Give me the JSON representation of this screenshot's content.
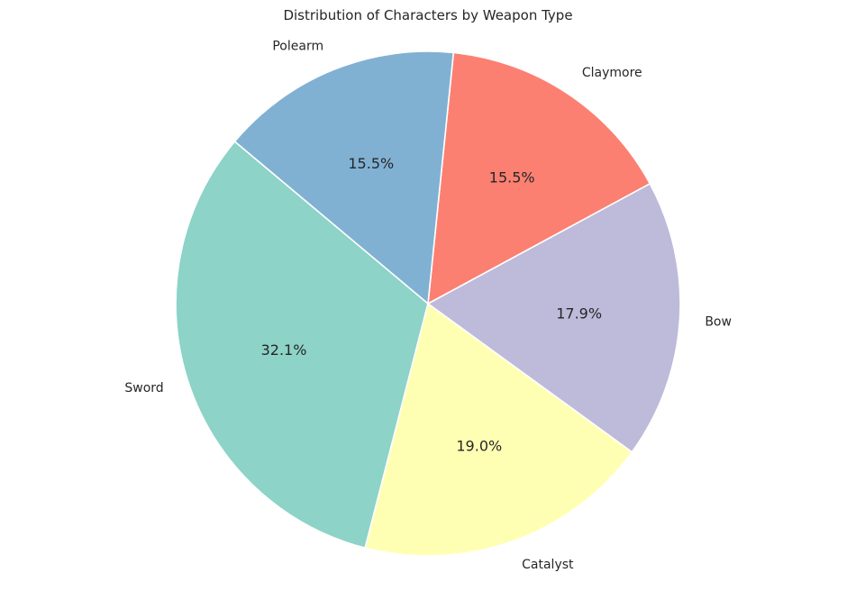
{
  "chart_data": {
    "type": "pie",
    "title": "Distribution of Characters by Weapon Type",
    "slices": [
      {
        "label": "Sword",
        "value": 32.1,
        "pct_label": "32.1%",
        "color": "#8dd3c7"
      },
      {
        "label": "Catalyst",
        "value": 19.0,
        "pct_label": "19.0%",
        "color": "#ffffb3"
      },
      {
        "label": "Bow",
        "value": 17.9,
        "pct_label": "17.9%",
        "color": "#bebada"
      },
      {
        "label": "Claymore",
        "value": 15.5,
        "pct_label": "15.5%",
        "color": "#fb8072"
      },
      {
        "label": "Polearm",
        "value": 15.5,
        "pct_label": "15.5%",
        "color": "#80b1d3"
      }
    ],
    "start_angle": 140,
    "counterclockwise": true,
    "legend": "none"
  }
}
